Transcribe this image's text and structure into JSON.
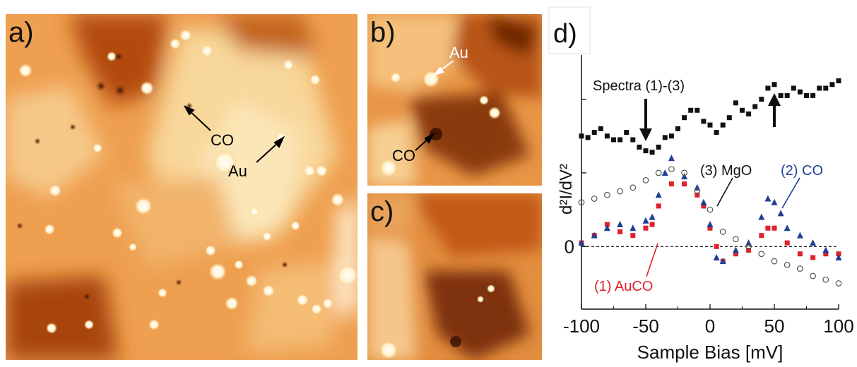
{
  "figure": {
    "panels": [
      {
        "label": "a)",
        "annotations": [
          "CO",
          "Au"
        ]
      },
      {
        "label": "b)",
        "annotations": [
          "Au",
          "CO"
        ]
      },
      {
        "label": "c)",
        "annotations": []
      }
    ]
  },
  "colors": {
    "stm_bright": "#fff6dc",
    "stm_mid": "#f2a24e",
    "stm_dark": "#7a2d05",
    "series_auco": "#e0202a",
    "series_co": "#1f3f96",
    "series_mgo": "#555555",
    "series_spectra": "#111111"
  },
  "chart_data": {
    "panel_label": "d)",
    "type": "scatter",
    "xlabel": "Sample Bias [mV]",
    "ylabel": "d²I/dV²",
    "xlim": [
      -100,
      100
    ],
    "xticks": [
      "-100",
      "-50",
      "0",
      "50",
      "100"
    ],
    "yticks": [
      "0"
    ],
    "zero_line": "dashed",
    "annotations": [
      "Spectra (1)-(3)",
      "(3) MgO",
      "(2) CO",
      "(1) AuCO"
    ],
    "arrows_at_mV": [
      -50,
      50
    ],
    "series": [
      {
        "name": "(1) AuCO",
        "marker": "square",
        "color": "#e0202a",
        "x": [
          -100,
          -90,
          -80,
          -70,
          -60,
          -50,
          -45,
          -40,
          -30,
          -20,
          -10,
          -5,
          0,
          5,
          10,
          20,
          30,
          40,
          45,
          50,
          60,
          70,
          80,
          90,
          100
        ],
        "y": [
          0.05,
          0.15,
          0.3,
          0.2,
          0.15,
          0.25,
          0.3,
          0.55,
          0.85,
          0.85,
          0.7,
          0.55,
          0.25,
          0.0,
          -0.2,
          -0.1,
          -0.05,
          0.15,
          0.25,
          0.25,
          0.05,
          -0.1,
          -0.15,
          -0.1,
          -0.1
        ]
      },
      {
        "name": "(2) CO",
        "marker": "triangle",
        "color": "#1f3f96",
        "x": [
          -100,
          -90,
          -80,
          -70,
          -60,
          -50,
          -45,
          -40,
          -35,
          -30,
          -20,
          -10,
          -5,
          0,
          5,
          10,
          20,
          30,
          40,
          45,
          50,
          55,
          60,
          70,
          80,
          90,
          100
        ],
        "y": [
          0.05,
          0.15,
          0.25,
          0.3,
          0.25,
          0.35,
          0.4,
          0.7,
          1.0,
          1.2,
          0.95,
          0.8,
          0.6,
          0.3,
          -0.15,
          -0.2,
          -0.05,
          0.05,
          0.4,
          0.65,
          0.6,
          0.45,
          0.25,
          0.15,
          0.05,
          -0.05,
          -0.15
        ]
      },
      {
        "name": "(3) MgO",
        "marker": "circle",
        "color": "#555555",
        "x": [
          -100,
          -90,
          -80,
          -70,
          -60,
          -50,
          -40,
          -30,
          -20,
          -10,
          0,
          10,
          20,
          30,
          40,
          50,
          60,
          70,
          80,
          90,
          100
        ],
        "y": [
          0.6,
          0.65,
          0.7,
          0.75,
          0.8,
          0.9,
          1.0,
          1.05,
          1.0,
          0.75,
          0.5,
          0.2,
          0.1,
          0.0,
          -0.1,
          -0.2,
          -0.25,
          -0.3,
          -0.4,
          -0.45,
          -0.5
        ]
      },
      {
        "name": "Spectra (1)-(3)",
        "marker": "square",
        "color": "#111111",
        "x": [
          -100,
          -95,
          -90,
          -85,
          -80,
          -75,
          -70,
          -65,
          -60,
          -55,
          -50,
          -45,
          -40,
          -35,
          -30,
          -25,
          -20,
          -15,
          -10,
          -5,
          0,
          5,
          10,
          15,
          20,
          25,
          30,
          35,
          40,
          45,
          50,
          55,
          60,
          65,
          70,
          75,
          80,
          85,
          90,
          95,
          100
        ],
        "y": [
          1.5,
          1.48,
          1.55,
          1.6,
          1.5,
          1.45,
          1.45,
          1.55,
          1.45,
          1.35,
          1.3,
          1.28,
          1.35,
          1.48,
          1.5,
          1.6,
          1.75,
          1.85,
          1.85,
          1.7,
          1.65,
          1.55,
          1.65,
          1.75,
          1.95,
          1.85,
          1.8,
          1.9,
          2.0,
          2.15,
          2.2,
          2.05,
          2.05,
          2.15,
          2.1,
          2.05,
          2.05,
          2.15,
          2.15,
          2.2,
          2.25
        ]
      }
    ]
  }
}
